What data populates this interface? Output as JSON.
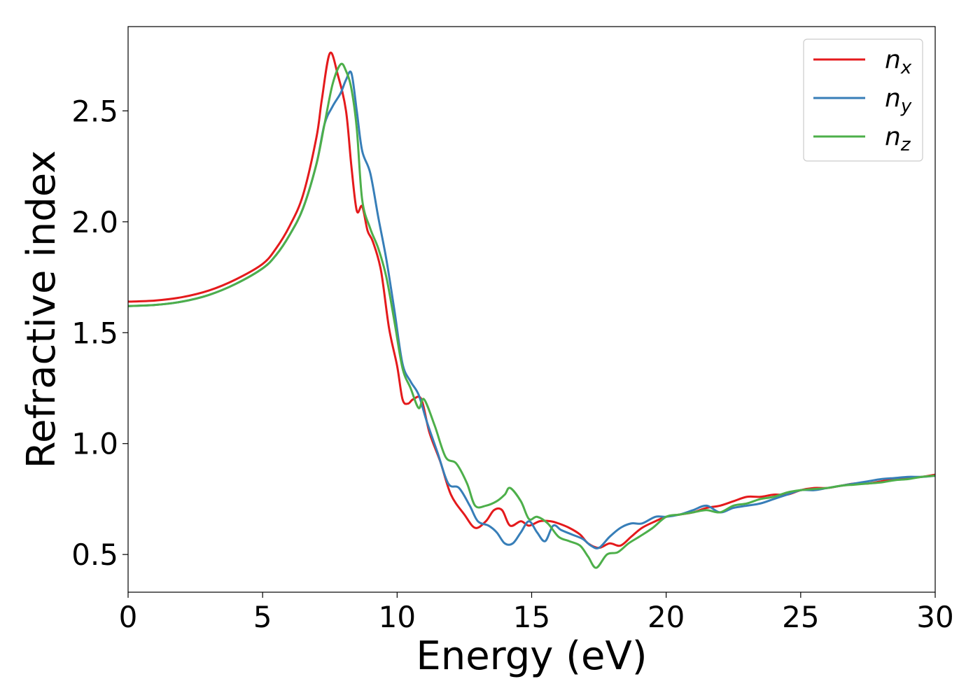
{
  "chart_data": {
    "type": "line",
    "title": "",
    "xlabel": "Energy (eV)",
    "ylabel": "Refractive index",
    "xlim": [
      0,
      30
    ],
    "ylim": [
      0.33,
      2.88
    ],
    "xticks": [
      "0",
      "5",
      "10",
      "15",
      "20",
      "25",
      "30"
    ],
    "yticks": [
      "0.5",
      "1.0",
      "1.5",
      "2.0",
      "2.5"
    ],
    "grid": false,
    "legend_position": "top-right",
    "series": [
      {
        "name": "n",
        "sub": "x",
        "color": "#e41a1c",
        "x": [
          0,
          1,
          2,
          3,
          4,
          5,
          5.5,
          6,
          6.5,
          7,
          7.2,
          7.5,
          7.8,
          8.1,
          8.3,
          8.5,
          8.7,
          8.9,
          9.1,
          9.4,
          9.7,
          10.0,
          10.2,
          10.4,
          10.6,
          10.9,
          11.2,
          11.6,
          12.0,
          12.5,
          12.9,
          13.3,
          13.6,
          13.9,
          14.2,
          14.6,
          14.9,
          15.3,
          15.7,
          16.0,
          16.4,
          16.8,
          17.1,
          17.5,
          17.9,
          18.3,
          18.7,
          19.1,
          19.6,
          20.0,
          20.5,
          21.0,
          21.5,
          22.0,
          22.5,
          23.0,
          23.5,
          24.0,
          24.5,
          25.0,
          25.5,
          26.0,
          26.5,
          27.0,
          27.5,
          28.0,
          28.5,
          29.0,
          29.5,
          30.0
        ],
        "y": [
          1.64,
          1.645,
          1.66,
          1.69,
          1.74,
          1.81,
          1.88,
          1.98,
          2.12,
          2.38,
          2.55,
          2.76,
          2.66,
          2.5,
          2.25,
          2.05,
          2.07,
          1.96,
          1.91,
          1.78,
          1.52,
          1.35,
          1.2,
          1.18,
          1.2,
          1.2,
          1.05,
          0.92,
          0.77,
          0.68,
          0.62,
          0.65,
          0.7,
          0.7,
          0.63,
          0.65,
          0.63,
          0.65,
          0.65,
          0.64,
          0.62,
          0.59,
          0.55,
          0.53,
          0.55,
          0.54,
          0.58,
          0.62,
          0.65,
          0.67,
          0.68,
          0.69,
          0.71,
          0.72,
          0.74,
          0.76,
          0.76,
          0.77,
          0.77,
          0.79,
          0.8,
          0.8,
          0.81,
          0.82,
          0.82,
          0.83,
          0.84,
          0.845,
          0.85,
          0.86
        ]
      },
      {
        "name": "n",
        "sub": "y",
        "color": "#377eb8",
        "x": [
          0,
          1,
          2,
          3,
          4,
          5,
          5.5,
          6,
          6.5,
          7,
          7.3,
          7.6,
          7.9,
          8.1,
          8.3,
          8.5,
          8.7,
          9.0,
          9.3,
          9.6,
          9.9,
          10.2,
          10.5,
          10.8,
          11.1,
          11.5,
          11.9,
          12.3,
          12.7,
          13.0,
          13.4,
          13.7,
          14.0,
          14.3,
          14.6,
          14.9,
          15.2,
          15.5,
          15.8,
          16.1,
          16.5,
          16.9,
          17.2,
          17.5,
          17.9,
          18.3,
          18.7,
          19.1,
          19.6,
          20.0,
          20.5,
          21.0,
          21.5,
          22.0,
          22.5,
          23.0,
          23.5,
          24.0,
          24.5,
          25.0,
          25.5,
          26.0,
          26.5,
          27.0,
          27.5,
          28.0,
          28.5,
          29.0,
          29.5,
          30.0
        ],
        "y": [
          1.62,
          1.625,
          1.64,
          1.67,
          1.72,
          1.79,
          1.85,
          1.94,
          2.06,
          2.26,
          2.44,
          2.52,
          2.58,
          2.64,
          2.67,
          2.5,
          2.32,
          2.22,
          2.02,
          1.83,
          1.6,
          1.36,
          1.28,
          1.22,
          1.1,
          0.96,
          0.82,
          0.8,
          0.72,
          0.65,
          0.63,
          0.6,
          0.55,
          0.55,
          0.6,
          0.65,
          0.6,
          0.56,
          0.63,
          0.61,
          0.59,
          0.57,
          0.54,
          0.53,
          0.58,
          0.62,
          0.64,
          0.64,
          0.67,
          0.67,
          0.68,
          0.7,
          0.72,
          0.69,
          0.71,
          0.72,
          0.73,
          0.75,
          0.77,
          0.79,
          0.79,
          0.8,
          0.81,
          0.82,
          0.83,
          0.84,
          0.845,
          0.85,
          0.85,
          0.855
        ]
      },
      {
        "name": "n",
        "sub": "z",
        "color": "#4daf4a",
        "x": [
          0,
          1,
          2,
          3,
          4,
          5,
          5.5,
          6,
          6.5,
          7,
          7.3,
          7.6,
          7.9,
          8.1,
          8.3,
          8.5,
          8.7,
          9.0,
          9.3,
          9.6,
          9.9,
          10.2,
          10.5,
          10.8,
          11.0,
          11.4,
          11.8,
          12.2,
          12.6,
          12.9,
          13.3,
          13.7,
          14.0,
          14.2,
          14.6,
          14.9,
          15.2,
          15.6,
          16.0,
          16.4,
          16.8,
          17.1,
          17.4,
          17.8,
          18.2,
          18.6,
          19.0,
          19.5,
          20.0,
          20.5,
          21.0,
          21.5,
          22.0,
          22.5,
          23.0,
          23.5,
          24.0,
          24.5,
          25.0,
          25.5,
          26.0,
          26.5,
          27.0,
          27.5,
          28.0,
          28.5,
          29.0,
          29.5,
          30.0
        ],
        "y": [
          1.62,
          1.625,
          1.64,
          1.67,
          1.72,
          1.79,
          1.85,
          1.94,
          2.06,
          2.26,
          2.44,
          2.62,
          2.71,
          2.68,
          2.6,
          2.42,
          2.1,
          1.97,
          1.88,
          1.75,
          1.55,
          1.34,
          1.25,
          1.16,
          1.2,
          1.08,
          0.94,
          0.91,
          0.82,
          0.72,
          0.72,
          0.74,
          0.77,
          0.8,
          0.74,
          0.66,
          0.67,
          0.64,
          0.58,
          0.56,
          0.54,
          0.49,
          0.44,
          0.5,
          0.51,
          0.55,
          0.58,
          0.62,
          0.67,
          0.68,
          0.69,
          0.7,
          0.69,
          0.72,
          0.73,
          0.75,
          0.76,
          0.78,
          0.79,
          0.795,
          0.8,
          0.81,
          0.815,
          0.82,
          0.825,
          0.835,
          0.84,
          0.85,
          0.855
        ]
      }
    ]
  }
}
